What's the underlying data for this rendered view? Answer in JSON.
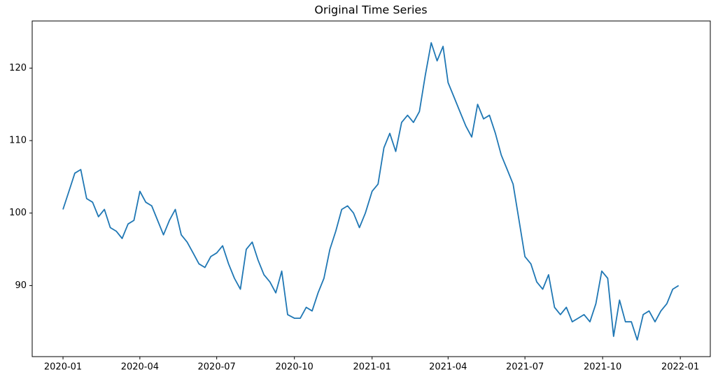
{
  "chart_data": {
    "type": "line",
    "title": "Original Time Series",
    "x": [
      0,
      7,
      14,
      21,
      28,
      35,
      42,
      49,
      56,
      63,
      70,
      77,
      84,
      91,
      98,
      105,
      112,
      119,
      126,
      133,
      140,
      147,
      154,
      161,
      168,
      175,
      182,
      189,
      196,
      203,
      210,
      217,
      224,
      231,
      238,
      245,
      252,
      259,
      266,
      274,
      281,
      288,
      295,
      302,
      309,
      316,
      323,
      330,
      337,
      344,
      351,
      358,
      366,
      373,
      380,
      387,
      394,
      401,
      408,
      415,
      422,
      429,
      436,
      443,
      450,
      456,
      463,
      470,
      477,
      484,
      491,
      498,
      505,
      512,
      519,
      526,
      533,
      540,
      547,
      554,
      561,
      568,
      575,
      582,
      589,
      596,
      603,
      610,
      617,
      624,
      631,
      638,
      645,
      652,
      659,
      666,
      673,
      680,
      687,
      694,
      701,
      708,
      715,
      722,
      729
    ],
    "series": [
      {
        "color": "#1f77b4",
        "values": [
          100.5,
          103,
          105.5,
          106,
          102,
          101.5,
          99.5,
          100.5,
          98,
          97.5,
          96.5,
          98.5,
          99,
          103,
          101.5,
          101,
          99,
          97,
          99,
          100.5,
          97,
          96,
          94.5,
          93,
          92.5,
          94,
          94.5,
          95.5,
          93,
          91,
          89.5,
          95,
          96,
          93.5,
          91.5,
          90.5,
          89,
          92,
          86,
          85.5,
          85.5,
          87,
          86.5,
          89,
          91,
          95,
          97.5,
          100.5,
          101,
          100,
          98,
          100,
          103,
          104,
          109,
          111,
          108.5,
          112.5,
          113.5,
          112.5,
          114,
          119,
          123.5,
          121,
          123,
          118,
          116,
          114,
          112,
          110.5,
          115,
          113,
          113.5,
          111,
          108,
          106,
          104,
          99,
          94,
          93,
          90.5,
          89.5,
          91.5,
          87,
          86,
          87,
          85,
          85.5,
          86,
          85,
          87.5,
          92,
          91,
          83,
          88,
          85,
          85,
          82.5,
          86,
          86.5,
          85,
          86.5,
          87.5,
          89.5,
          90
        ]
      }
    ],
    "xlim": [
      -36.5,
      766.5
    ],
    "ylim": [
      80.2,
      126.5
    ],
    "xticks": [
      {
        "value": 0,
        "label": "2020-01"
      },
      {
        "value": 91,
        "label": "2020-04"
      },
      {
        "value": 182,
        "label": "2020-07"
      },
      {
        "value": 274,
        "label": "2020-10"
      },
      {
        "value": 366,
        "label": "2021-01"
      },
      {
        "value": 456,
        "label": "2021-04"
      },
      {
        "value": 547,
        "label": "2021-07"
      },
      {
        "value": 639,
        "label": "2021-10"
      },
      {
        "value": 731,
        "label": "2022-01"
      }
    ],
    "yticks": [
      90,
      100,
      110,
      120
    ]
  }
}
